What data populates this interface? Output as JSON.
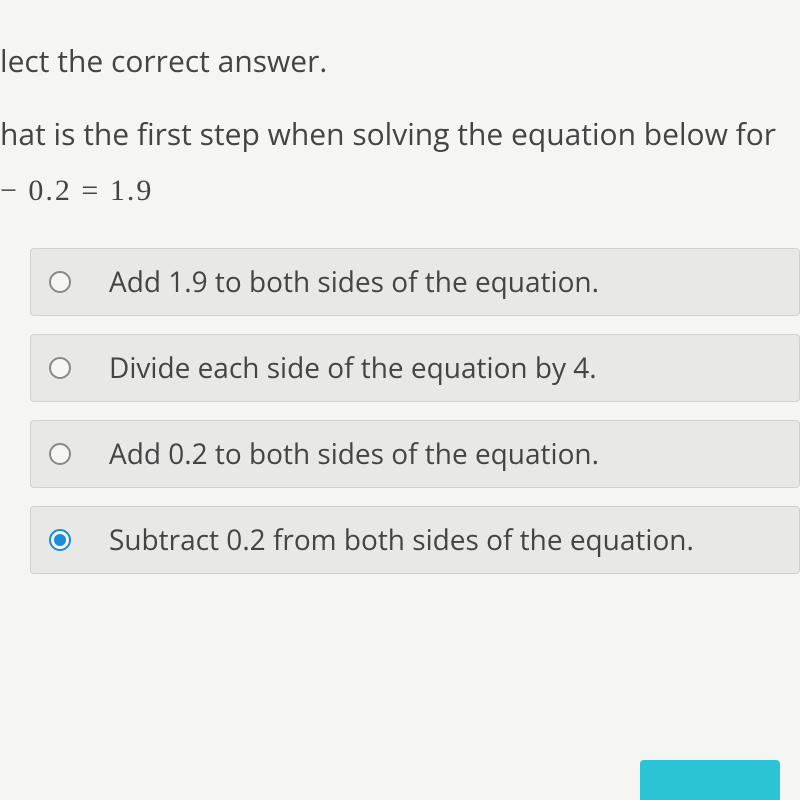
{
  "instruction": "lect the correct answer.",
  "question": "hat is the first step when solving the equation below for",
  "equation": "  −  0.2  =  1.9",
  "options": [
    {
      "label": "Add 1.9 to both sides of the equation.",
      "selected": false
    },
    {
      "label": "Divide each side of the equation by 4.",
      "selected": false
    },
    {
      "label": "Add 0.2 to both sides of the equation.",
      "selected": false
    },
    {
      "label": "Subtract 0.2 from both sides of the equation.",
      "selected": true
    }
  ],
  "colors": {
    "background": "#f5f6f4",
    "text": "#3a3a3a",
    "option_bg": "#e8e9e7",
    "option_border": "#d0d1cf",
    "radio_border": "#888",
    "radio_selected": "#1a8cd8",
    "next_btn": "#2bc3d6"
  },
  "fontsize": {
    "body": 30,
    "option": 28
  }
}
